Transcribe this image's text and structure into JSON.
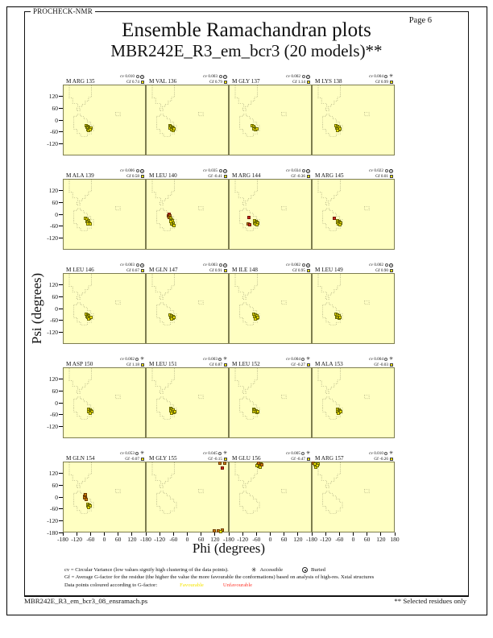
{
  "page": {
    "app_name": "PROCHECK-NMR",
    "page_label": "Page 6",
    "title": "Ensemble Ramachandran plots",
    "subtitle": "MBR242E_R3_em_bcr3 (20 models)**",
    "footer_left": "MBR242E_R3_em_bcr3_08_ensramach.ps",
    "footer_right": "** Selected residues only"
  },
  "legend": {
    "cv_line": "cv = Circular Variance (low values signify high clustering of the data points).",
    "accessible_label": "Accessible",
    "buried_label": "Buried",
    "gf_line": "Gf = Average G-factor for the residue (the higher the value the more favourable the conformations) based on analysis of high-res. Xstal structures",
    "points_line": "Data points coloured according to G-factor:",
    "favourable_label": "Favourable",
    "unfavourable_label": "Unfavourable"
  },
  "icons": {
    "accessible_star": "✳"
  },
  "colors": {
    "plot_bg": "#ffffc2",
    "frame": "#7d7d4f",
    "region_dots": "#9b9b72",
    "favourable_fill": "#f0e000",
    "favourable_border": "#6f6f00",
    "orange_fill": "#c87a00",
    "orange_border": "#6f3c00",
    "red_fill": "#cf2a18",
    "red_border": "#701208",
    "legend_favourable_text": "#f5e400",
    "legend_unfavourable_text": "#ff3b30"
  },
  "chart_data": {
    "type": "scatter",
    "title": "Ensemble Ramachandran plots",
    "xlabel": "Phi (degrees)",
    "ylabel": "Psi (degrees)",
    "xlim": [
      -180,
      180
    ],
    "ylim": [
      -180,
      180
    ],
    "xticks": [
      -180,
      -120,
      -60,
      0,
      60,
      120
    ],
    "xtick_last": 180,
    "yticks": [
      120,
      60,
      0,
      -60,
      -120
    ],
    "y_bottom_tick": -180,
    "grid": false,
    "point_color_key": {
      "y": "favourable (yellow)",
      "o": "less favourable (orange)",
      "r": "unfavourable (red)"
    },
    "subplots": [
      {
        "label": "M ARG 135",
        "cv": "0.010",
        "gf": "0.74",
        "access": "buried",
        "points": [
          [
            -80,
            -28,
            "y"
          ],
          [
            -74,
            -32,
            "y"
          ],
          [
            -68,
            -36,
            "y"
          ],
          [
            -78,
            -38,
            "y"
          ],
          [
            -72,
            -42,
            "y"
          ],
          [
            -66,
            -46,
            "y"
          ],
          [
            -60,
            -42,
            "y"
          ],
          [
            -74,
            -50,
            "y"
          ],
          [
            -68,
            -54,
            "y"
          ],
          [
            -62,
            -50,
            "y"
          ]
        ]
      },
      {
        "label": "M VAL 136",
        "cv": "0.003",
        "gf": "0.79",
        "access": "buried",
        "points": [
          [
            -78,
            -30,
            "y"
          ],
          [
            -72,
            -34,
            "y"
          ],
          [
            -66,
            -38,
            "y"
          ],
          [
            -76,
            -42,
            "y"
          ],
          [
            -70,
            -46,
            "y"
          ],
          [
            -64,
            -42,
            "y"
          ],
          [
            -70,
            -52,
            "y"
          ],
          [
            -64,
            -54,
            "y"
          ],
          [
            -58,
            -48,
            "y"
          ]
        ]
      },
      {
        "label": "M GLY 137",
        "cv": "0.002",
        "gf": "1.14",
        "access": "buried",
        "points": [
          [
            -80,
            -30,
            "y"
          ],
          [
            -74,
            -34,
            "y"
          ],
          [
            -70,
            -40,
            "y"
          ],
          [
            -64,
            -44,
            "y"
          ],
          [
            -72,
            -48,
            "y"
          ],
          [
            -66,
            -52,
            "y"
          ],
          [
            -60,
            -46,
            "y"
          ]
        ]
      },
      {
        "label": "M LYS 138",
        "cv": "0.004",
        "gf": "0.99",
        "access": "accessible",
        "points": [
          [
            -76,
            -30,
            "y"
          ],
          [
            -70,
            -34,
            "y"
          ],
          [
            -64,
            -38,
            "y"
          ],
          [
            -74,
            -42,
            "y"
          ],
          [
            -68,
            -46,
            "y"
          ],
          [
            -62,
            -50,
            "y"
          ],
          [
            -70,
            -54,
            "y"
          ],
          [
            -58,
            -44,
            "y"
          ]
        ]
      },
      {
        "label": "M ALA 139",
        "cv": "0.006",
        "gf": "0.58",
        "access": "buried",
        "points": [
          [
            -82,
            -22,
            "y"
          ],
          [
            -76,
            -26,
            "y"
          ],
          [
            -70,
            -32,
            "y"
          ],
          [
            -78,
            -36,
            "y"
          ],
          [
            -72,
            -40,
            "y"
          ],
          [
            -66,
            -44,
            "y"
          ],
          [
            -72,
            -50,
            "y"
          ],
          [
            -64,
            -52,
            "y"
          ]
        ]
      },
      {
        "label": "M LEU 140",
        "cv": "0.035",
        "gf": "-0.41",
        "access": "buried",
        "points": [
          [
            -84,
            -8,
            "o"
          ],
          [
            -80,
            -2,
            "r"
          ],
          [
            -76,
            -10,
            "o"
          ],
          [
            -80,
            -16,
            "o"
          ],
          [
            -74,
            -22,
            "y"
          ],
          [
            -70,
            -28,
            "y"
          ],
          [
            -66,
            -34,
            "y"
          ],
          [
            -72,
            -38,
            "y"
          ],
          [
            -64,
            -44,
            "y"
          ],
          [
            -68,
            -50,
            "y"
          ],
          [
            -62,
            -56,
            "y"
          ],
          [
            -58,
            -60,
            "y"
          ]
        ]
      },
      {
        "label": "M ARG 144",
        "cv": "0.034",
        "gf": "-0.36",
        "access": "buried",
        "points": [
          [
            -70,
            -34,
            "y"
          ],
          [
            -64,
            -38,
            "y"
          ],
          [
            -58,
            -42,
            "y"
          ],
          [
            -68,
            -44,
            "y"
          ],
          [
            -62,
            -48,
            "y"
          ],
          [
            -56,
            -46,
            "y"
          ],
          [
            -66,
            -52,
            "y"
          ],
          [
            -60,
            -56,
            "y"
          ],
          [
            -94,
            -16,
            "r"
          ],
          [
            -98,
            -50,
            "o"
          ],
          [
            -92,
            -54,
            "r"
          ]
        ]
      },
      {
        "label": "M ARG 145",
        "cv": "0.022",
        "gf": "0.01",
        "access": "buried",
        "points": [
          [
            -70,
            -32,
            "y"
          ],
          [
            -64,
            -36,
            "y"
          ],
          [
            -58,
            -40,
            "y"
          ],
          [
            -68,
            -42,
            "y"
          ],
          [
            -62,
            -46,
            "y"
          ],
          [
            -56,
            -44,
            "y"
          ],
          [
            -66,
            -52,
            "y"
          ],
          [
            -60,
            -54,
            "y"
          ],
          [
            -84,
            -20,
            "r"
          ]
        ]
      },
      {
        "label": "M LEU 146",
        "cv": "0.003",
        "gf": "0.67",
        "access": "buried",
        "points": [
          [
            -80,
            -30,
            "y"
          ],
          [
            -74,
            -34,
            "y"
          ],
          [
            -68,
            -38,
            "y"
          ],
          [
            -78,
            -42,
            "y"
          ],
          [
            -72,
            -46,
            "y"
          ],
          [
            -66,
            -50,
            "y"
          ],
          [
            -60,
            -44,
            "y"
          ],
          [
            -70,
            -54,
            "y"
          ]
        ]
      },
      {
        "label": "M GLN 147",
        "cv": "0.003",
        "gf": "0.91",
        "access": "buried",
        "points": [
          [
            -76,
            -32,
            "y"
          ],
          [
            -70,
            -36,
            "y"
          ],
          [
            -64,
            -40,
            "y"
          ],
          [
            -74,
            -44,
            "y"
          ],
          [
            -68,
            -48,
            "y"
          ],
          [
            -62,
            -52,
            "y"
          ],
          [
            -70,
            -56,
            "y"
          ],
          [
            -58,
            -46,
            "y"
          ]
        ]
      },
      {
        "label": "M ILE 148",
        "cv": "0.002",
        "gf": "0.95",
        "access": "buried",
        "points": [
          [
            -72,
            -30,
            "y"
          ],
          [
            -66,
            -34,
            "y"
          ],
          [
            -60,
            -38,
            "y"
          ],
          [
            -70,
            -42,
            "y"
          ],
          [
            -64,
            -46,
            "y"
          ],
          [
            -58,
            -50,
            "y"
          ],
          [
            -66,
            -54,
            "y"
          ],
          [
            -54,
            -44,
            "y"
          ]
        ]
      },
      {
        "label": "M LEU 149",
        "cv": "0.002",
        "gf": "0.90",
        "access": "buried",
        "points": [
          [
            -76,
            -30,
            "y"
          ],
          [
            -70,
            -34,
            "y"
          ],
          [
            -64,
            -38,
            "y"
          ],
          [
            -74,
            -44,
            "y"
          ],
          [
            -68,
            -48,
            "y"
          ],
          [
            -62,
            -52,
            "y"
          ],
          [
            -58,
            -44,
            "y"
          ]
        ]
      },
      {
        "label": "M ASP 150",
        "cv": "0.002",
        "gf": "1.18",
        "access": "accessible",
        "points": [
          [
            -70,
            -34,
            "y"
          ],
          [
            -64,
            -38,
            "y"
          ],
          [
            -58,
            -42,
            "y"
          ],
          [
            -68,
            -46,
            "y"
          ],
          [
            -62,
            -50,
            "y"
          ],
          [
            -56,
            -46,
            "y"
          ],
          [
            -64,
            -54,
            "y"
          ]
        ]
      },
      {
        "label": "M LEU 151",
        "cv": "0.003",
        "gf": "0.87",
        "access": "accessible",
        "points": [
          [
            -74,
            -30,
            "y"
          ],
          [
            -68,
            -34,
            "y"
          ],
          [
            -62,
            -38,
            "y"
          ],
          [
            -72,
            -42,
            "y"
          ],
          [
            -66,
            -46,
            "y"
          ],
          [
            -60,
            -50,
            "y"
          ],
          [
            -68,
            -54,
            "y"
          ],
          [
            -56,
            -44,
            "y"
          ]
        ]
      },
      {
        "label": "M LEU 152",
        "cv": "0.004",
        "gf": "-0.27",
        "access": "accessible",
        "points": [
          [
            -74,
            -32,
            "y"
          ],
          [
            -68,
            -36,
            "y"
          ],
          [
            -62,
            -40,
            "y"
          ],
          [
            -72,
            -44,
            "y"
          ],
          [
            -66,
            -48,
            "y"
          ],
          [
            -60,
            -52,
            "y"
          ],
          [
            -56,
            -44,
            "y"
          ]
        ]
      },
      {
        "label": "M ALA 153",
        "cv": "0.004",
        "gf": "-0.03",
        "access": "accessible",
        "points": [
          [
            -70,
            -34,
            "y"
          ],
          [
            -64,
            -38,
            "y"
          ],
          [
            -58,
            -42,
            "y"
          ],
          [
            -68,
            -48,
            "y"
          ],
          [
            -62,
            -52,
            "y"
          ],
          [
            -56,
            -46,
            "y"
          ],
          [
            -66,
            -56,
            "y"
          ]
        ]
      },
      {
        "label": "M GLN 154",
        "cv": "0.053",
        "gf": "-0.07",
        "access": "accessible",
        "points": [
          [
            -88,
            6,
            "o"
          ],
          [
            -84,
            12,
            "o"
          ],
          [
            -82,
            0,
            "o"
          ],
          [
            -86,
            -6,
            "o"
          ],
          [
            -80,
            -12,
            "o"
          ],
          [
            -72,
            -38,
            "y"
          ],
          [
            -66,
            -42,
            "y"
          ],
          [
            -74,
            -46,
            "y"
          ],
          [
            -68,
            -50,
            "y"
          ],
          [
            -62,
            -46,
            "y"
          ],
          [
            -70,
            -54,
            "y"
          ]
        ]
      },
      {
        "label": "M GLY 155",
        "cv": "0.045",
        "gf": "-0.15",
        "access": "accessible",
        "points": [
          [
            146,
            174,
            "o"
          ],
          [
            164,
            176,
            "o"
          ],
          [
            156,
            150,
            "r"
          ],
          [
            118,
            -174,
            "o"
          ],
          [
            138,
            -176,
            "o"
          ],
          [
            154,
            -170,
            "o"
          ],
          [
            148,
            -178,
            "y"
          ]
        ]
      },
      {
        "label": "M GLU 156",
        "cv": "0.005",
        "gf": "-0.47",
        "access": "accessible",
        "points": [
          [
            -56,
            168,
            "y"
          ],
          [
            -48,
            164,
            "y"
          ],
          [
            -42,
            170,
            "y"
          ],
          [
            -52,
            158,
            "y"
          ],
          [
            -44,
            156,
            "y"
          ],
          [
            -60,
            162,
            "y"
          ],
          [
            -50,
            174,
            "o"
          ],
          [
            -38,
            166,
            "o"
          ]
        ]
      },
      {
        "label": "M ARG 157",
        "cv": "0.010",
        "gf": "-0.26",
        "access": "accessible",
        "points": [
          [
            -176,
            176,
            "o"
          ],
          [
            -168,
            168,
            "y"
          ],
          [
            -162,
            162,
            "y"
          ],
          [
            -156,
            170,
            "y"
          ],
          [
            -166,
            156,
            "y"
          ],
          [
            -158,
            164,
            "y"
          ],
          [
            -170,
            172,
            "y"
          ]
        ]
      }
    ]
  }
}
